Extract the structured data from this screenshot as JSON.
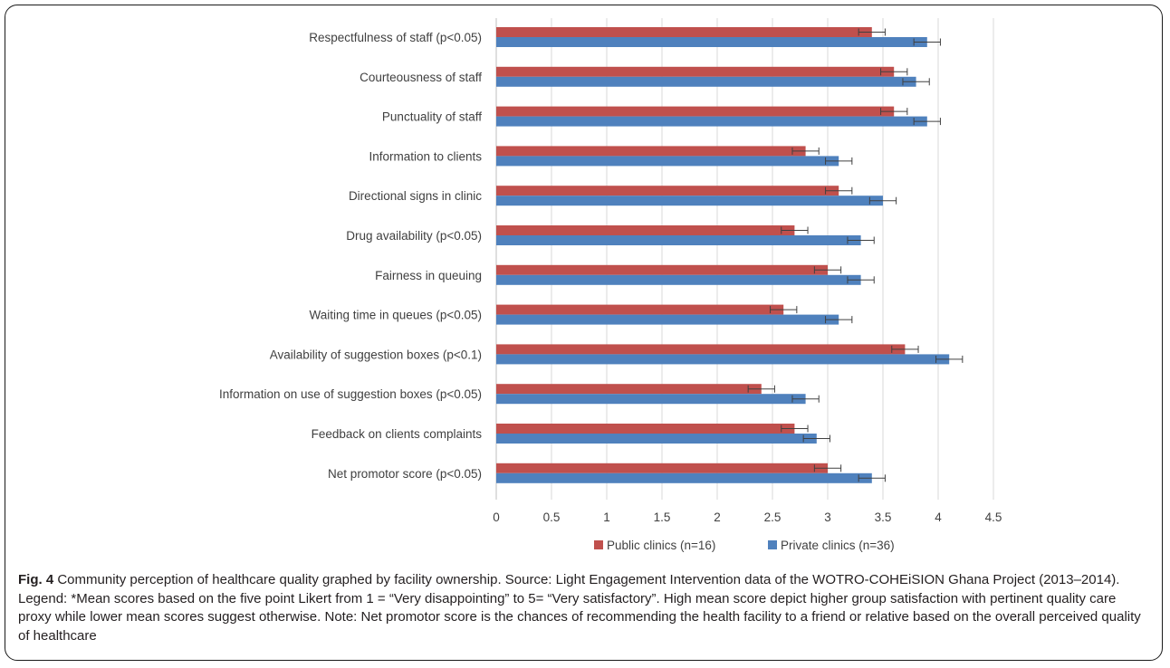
{
  "chart_data": {
    "type": "bar",
    "orientation": "horizontal",
    "categories": [
      "Respectfulness of staff (p<0.05)",
      "Courteousness of staff",
      "Punctuality of staff",
      "Information to clients",
      "Directional signs in clinic",
      "Drug availability (p<0.05)",
      "Fairness in queuing",
      "Waiting time in queues (p<0.05)",
      "Availability of suggestion boxes (p<0.1)",
      "Information on use of suggestion boxes (p<0.05)",
      "Feedback on clients complaints",
      "Net promotor score (p<0.05)"
    ],
    "series": [
      {
        "name": "Public clinics (n=16)",
        "color": "#c0504d",
        "values": [
          3.4,
          3.6,
          3.6,
          2.8,
          3.1,
          2.7,
          3.0,
          2.6,
          3.7,
          2.4,
          2.7,
          3.0
        ],
        "error": [
          0.12,
          0.12,
          0.12,
          0.12,
          0.12,
          0.12,
          0.12,
          0.12,
          0.12,
          0.12,
          0.12,
          0.12
        ]
      },
      {
        "name": "Private clinics (n=36)",
        "color": "#4f81bd",
        "values": [
          3.9,
          3.8,
          3.9,
          3.1,
          3.5,
          3.3,
          3.3,
          3.1,
          4.1,
          2.8,
          2.9,
          3.4
        ],
        "error": [
          0.12,
          0.12,
          0.12,
          0.12,
          0.12,
          0.12,
          0.12,
          0.12,
          0.12,
          0.12,
          0.12,
          0.12
        ]
      }
    ],
    "x_ticks": [
      "0",
      "0.5",
      "1",
      "1.5",
      "2",
      "2.5",
      "3",
      "3.5",
      "4",
      "4.5"
    ],
    "xlim": [
      0,
      4.5
    ],
    "grid": "vertical",
    "legend_position": "bottom",
    "gridline_color": "#d9d9d9",
    "axis_color": "#bfbfbf"
  },
  "caption": {
    "label": "Fig. 4",
    "text": "Community perception of healthcare quality graphed by facility ownership. Source: Light Engagement Intervention data of the WOTRO-COHEiSION Ghana Project (2013–2014). Legend: *Mean scores based on the five point Likert from 1 = “Very disappointing” to 5= “Very satisfactory”. High mean score depict higher group satisfaction with pertinent quality care proxy while lower mean scores suggest otherwise. Note: Net promotor score is the chances of recommending the health facility to a friend or relative based on the overall perceived quality of healthcare"
  }
}
